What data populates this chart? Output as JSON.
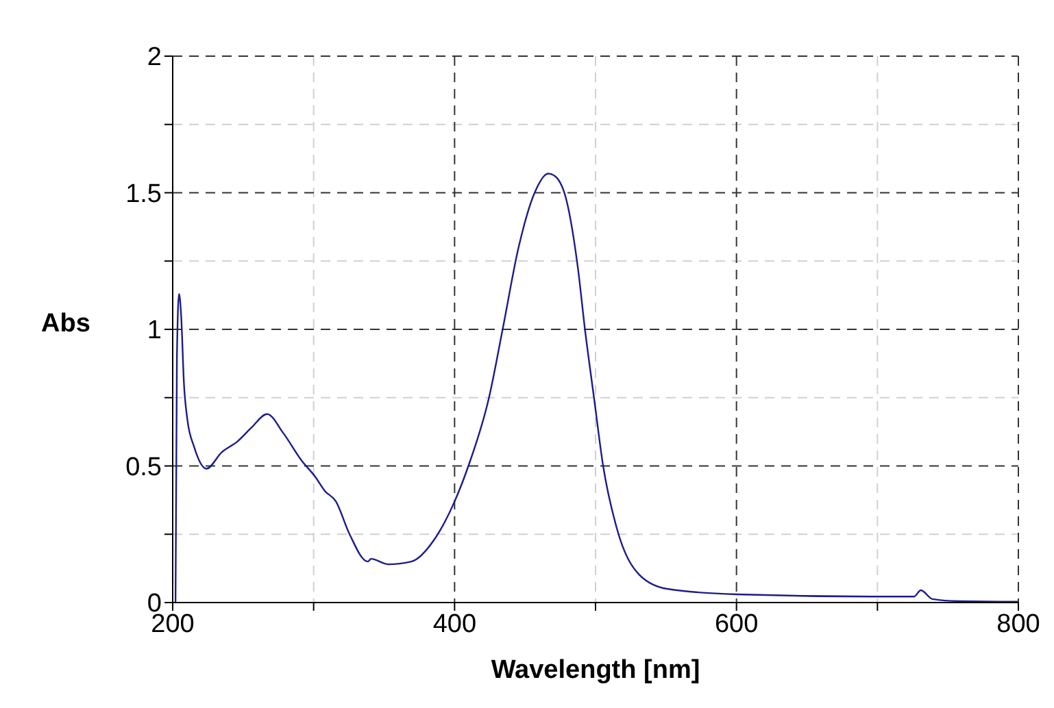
{
  "chart_data": {
    "type": "line",
    "xlabel": "Wavelength [nm]",
    "ylabel": "Abs",
    "xlim": [
      200,
      800
    ],
    "ylim": [
      0,
      2
    ],
    "xticks": [
      200,
      {
        "value": 300,
        "label": null
      },
      400,
      {
        "value": 500,
        "label": null
      },
      600,
      {
        "value": 700,
        "label": null
      },
      800
    ],
    "yticks": [
      0,
      {
        "value": 0.25,
        "label": null
      },
      0.5,
      {
        "value": 0.75,
        "label": null
      },
      1,
      {
        "value": 1.25,
        "label": null
      },
      1.5,
      {
        "value": 1.75,
        "label": null
      },
      2
    ],
    "grid": true,
    "marker": "none",
    "line_style": "solid",
    "series": [
      {
        "color": "#1c1c8c",
        "x": [
          202,
          203,
          204.5,
          206,
          208,
          210.4,
          215.2,
          224,
          234.7,
          246,
          255.8,
          267,
          278.5,
          291.4,
          301.2,
          307.7,
          315.8,
          325.5,
          338.4,
          340.7,
          353,
          369.3,
          385.5,
          400,
          409.8,
          424.4,
          434.1,
          445.4,
          456.8,
          466.5,
          471.4,
          479.5,
          487.6,
          492.5,
          498.9,
          505.4,
          515.2,
          531.4,
          550.9,
          600,
          700,
          726,
          730.8,
          739,
          758,
          800
        ],
        "values": [
          0,
          0.9,
          1.13,
          1.05,
          0.8,
          0.67,
          0.57,
          0.49,
          0.55,
          0.59,
          0.64,
          0.69,
          0.62,
          0.52,
          0.46,
          0.41,
          0.37,
          0.25,
          0.15,
          0.16,
          0.14,
          0.15,
          0.23,
          0.37,
          0.5,
          0.75,
          1.0,
          1.3,
          1.5,
          1.57,
          1.56,
          1.47,
          1.22,
          1.0,
          0.75,
          0.5,
          0.27,
          0.1,
          0.05,
          0.03,
          0.022,
          0.022,
          0.045,
          0.013,
          0.005,
          0.003
        ]
      }
    ]
  }
}
